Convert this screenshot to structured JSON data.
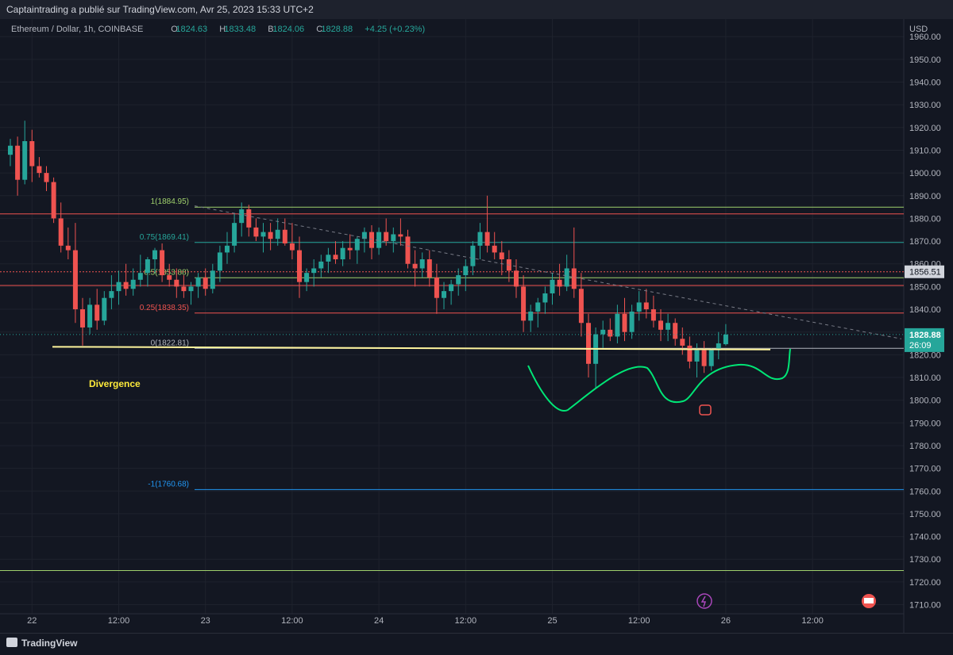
{
  "header": {
    "publisher_line": "Captaintrading a publié sur TradingView.com, Avr 25, 2023 15:33 UTC+2"
  },
  "legend": {
    "symbol": "Ethereum / Dollar, 1h, COINBASE",
    "open_label": "O",
    "open": "1824.63",
    "high_label": "H",
    "high": "1833.48",
    "low_label": "B",
    "low": "1824.06",
    "close_label": "C",
    "close": "1828.88",
    "change": "+4.25 (+0.23%)"
  },
  "footer": {
    "brand": "TradingView"
  },
  "colors": {
    "background": "#131722",
    "up": "#26a69a",
    "down": "#ef5350",
    "grid": "#1e222d",
    "text": "#b2b5be"
  },
  "chart_data": {
    "type": "candlestick",
    "currency": "USD",
    "y_range": [
      1706,
      1966
    ],
    "y_ticks": [
      "1960.00",
      "1950.00",
      "1940.00",
      "1930.00",
      "1920.00",
      "1910.00",
      "1900.00",
      "1890.00",
      "1880.00",
      "1870.00",
      "1860.00",
      "1850.00",
      "1840.00",
      "1830.00",
      "1820.00",
      "1810.00",
      "1800.00",
      "1790.00",
      "1780.00",
      "1770.00",
      "1760.00",
      "1750.00",
      "1740.00",
      "1730.00",
      "1720.00",
      "1710.00"
    ],
    "x_ticks": [
      "22",
      "12:00",
      "23",
      "12:00",
      "24",
      "12:00",
      "25",
      "12:00",
      "26",
      "12:00"
    ],
    "fib_levels": [
      {
        "label": "1(1884.95)",
        "price": 1884.95,
        "color": "#9fd06c"
      },
      {
        "label": "0.75(1869.41)",
        "price": 1869.41,
        "color": "#26a69a"
      },
      {
        "label": "0.5(1853.88)",
        "price": 1853.88,
        "color": "#9fd06c"
      },
      {
        "label": "0.25(1838.35)",
        "price": 1838.35,
        "color": "#ef5350"
      },
      {
        "label": "0(1822.81)",
        "price": 1822.81,
        "color": "#b2b5be"
      },
      {
        "label": "-1(1760.68)",
        "price": 1760.68,
        "color": "#2196f3"
      }
    ],
    "price_labels": {
      "level_tag": "1856.51",
      "last_price": "1828.88",
      "countdown": "26:09"
    },
    "annotations": {
      "divergence": "Divergence"
    },
    "candles": [
      [
        1908,
        1915,
        1903,
        1912
      ],
      [
        1912,
        1916,
        1890,
        1897
      ],
      [
        1897,
        1923,
        1895,
        1914
      ],
      [
        1914,
        1919,
        1896,
        1903
      ],
      [
        1903,
        1907,
        1898,
        1900
      ],
      [
        1900,
        1903,
        1892,
        1896
      ],
      [
        1896,
        1898,
        1878,
        1880
      ],
      [
        1880,
        1887,
        1865,
        1868
      ],
      [
        1868,
        1876,
        1862,
        1866
      ],
      [
        1866,
        1878,
        1834,
        1840
      ],
      [
        1840,
        1845,
        1824,
        1832
      ],
      [
        1832,
        1845,
        1829,
        1842
      ],
      [
        1842,
        1849,
        1831,
        1835
      ],
      [
        1835,
        1848,
        1833,
        1845
      ],
      [
        1845,
        1855,
        1840,
        1848
      ],
      [
        1848,
        1857,
        1842,
        1852
      ],
      [
        1852,
        1860,
        1846,
        1849
      ],
      [
        1849,
        1858,
        1846,
        1853
      ],
      [
        1853,
        1864,
        1850,
        1856
      ],
      [
        1856,
        1863,
        1850,
        1862
      ],
      [
        1862,
        1867,
        1856,
        1866
      ],
      [
        1866,
        1869,
        1852,
        1855
      ],
      [
        1855,
        1860,
        1850,
        1853
      ],
      [
        1853,
        1858,
        1845,
        1850
      ],
      [
        1850,
        1855,
        1845,
        1848
      ],
      [
        1848,
        1852,
        1842,
        1850
      ],
      [
        1850,
        1856,
        1845,
        1854
      ],
      [
        1854,
        1858,
        1846,
        1849
      ],
      [
        1849,
        1860,
        1847,
        1857
      ],
      [
        1857,
        1868,
        1852,
        1865
      ],
      [
        1865,
        1874,
        1860,
        1868
      ],
      [
        1868,
        1882,
        1865,
        1878
      ],
      [
        1878,
        1887,
        1872,
        1884
      ],
      [
        1884,
        1886,
        1872,
        1876
      ],
      [
        1876,
        1880,
        1870,
        1872
      ],
      [
        1872,
        1878,
        1865,
        1874
      ],
      [
        1874,
        1878,
        1866,
        1871
      ],
      [
        1871,
        1880,
        1868,
        1875
      ],
      [
        1875,
        1880,
        1868,
        1869
      ],
      [
        1869,
        1878,
        1862,
        1866
      ],
      [
        1866,
        1872,
        1845,
        1852
      ],
      [
        1852,
        1858,
        1848,
        1856
      ],
      [
        1856,
        1862,
        1850,
        1858
      ],
      [
        1858,
        1864,
        1854,
        1861
      ],
      [
        1861,
        1867,
        1856,
        1864
      ],
      [
        1864,
        1870,
        1860,
        1862
      ],
      [
        1862,
        1870,
        1859,
        1867
      ],
      [
        1867,
        1873,
        1862,
        1866
      ],
      [
        1866,
        1872,
        1860,
        1871
      ],
      [
        1871,
        1876,
        1865,
        1874
      ],
      [
        1874,
        1877,
        1862,
        1867
      ],
      [
        1867,
        1876,
        1864,
        1874
      ],
      [
        1874,
        1880,
        1868,
        1870
      ],
      [
        1870,
        1876,
        1865,
        1873
      ],
      [
        1873,
        1880,
        1868,
        1872
      ],
      [
        1872,
        1875,
        1858,
        1860
      ],
      [
        1860,
        1866,
        1850,
        1858
      ],
      [
        1858,
        1865,
        1854,
        1862
      ],
      [
        1862,
        1866,
        1850,
        1854
      ],
      [
        1854,
        1860,
        1838,
        1845
      ],
      [
        1845,
        1852,
        1840,
        1848
      ],
      [
        1848,
        1853,
        1842,
        1851
      ],
      [
        1851,
        1858,
        1846,
        1855
      ],
      [
        1855,
        1862,
        1848,
        1859
      ],
      [
        1859,
        1870,
        1855,
        1868
      ],
      [
        1868,
        1878,
        1862,
        1874
      ],
      [
        1874,
        1890,
        1865,
        1868
      ],
      [
        1868,
        1874,
        1862,
        1865
      ],
      [
        1865,
        1870,
        1855,
        1862
      ],
      [
        1862,
        1866,
        1852,
        1857
      ],
      [
        1857,
        1862,
        1845,
        1850
      ],
      [
        1850,
        1855,
        1830,
        1835
      ],
      [
        1835,
        1842,
        1830,
        1839
      ],
      [
        1839,
        1845,
        1832,
        1843
      ],
      [
        1843,
        1850,
        1838,
        1847
      ],
      [
        1847,
        1856,
        1842,
        1853
      ],
      [
        1853,
        1860,
        1846,
        1850
      ],
      [
        1850,
        1864,
        1848,
        1858
      ],
      [
        1858,
        1876,
        1845,
        1849
      ],
      [
        1849,
        1856,
        1828,
        1834
      ],
      [
        1834,
        1838,
        1810,
        1816
      ],
      [
        1816,
        1832,
        1805,
        1829
      ],
      [
        1829,
        1835,
        1823,
        1831
      ],
      [
        1831,
        1836,
        1826,
        1828
      ],
      [
        1828,
        1842,
        1825,
        1838
      ],
      [
        1838,
        1845,
        1826,
        1830
      ],
      [
        1830,
        1842,
        1827,
        1839
      ],
      [
        1839,
        1848,
        1835,
        1843
      ],
      [
        1843,
        1849,
        1836,
        1840
      ],
      [
        1840,
        1846,
        1832,
        1835
      ],
      [
        1835,
        1840,
        1826,
        1831
      ],
      [
        1831,
        1838,
        1826,
        1834
      ],
      [
        1834,
        1836,
        1824,
        1827
      ],
      [
        1827,
        1832,
        1820,
        1824
      ],
      [
        1824,
        1828,
        1814,
        1817
      ],
      [
        1817,
        1825,
        1810,
        1822
      ],
      [
        1822,
        1826,
        1812,
        1815
      ],
      [
        1815,
        1823,
        1813,
        1822
      ],
      [
        1822,
        1830,
        1818,
        1825
      ],
      [
        1824.63,
        1833.48,
        1824.06,
        1828.88
      ]
    ]
  }
}
